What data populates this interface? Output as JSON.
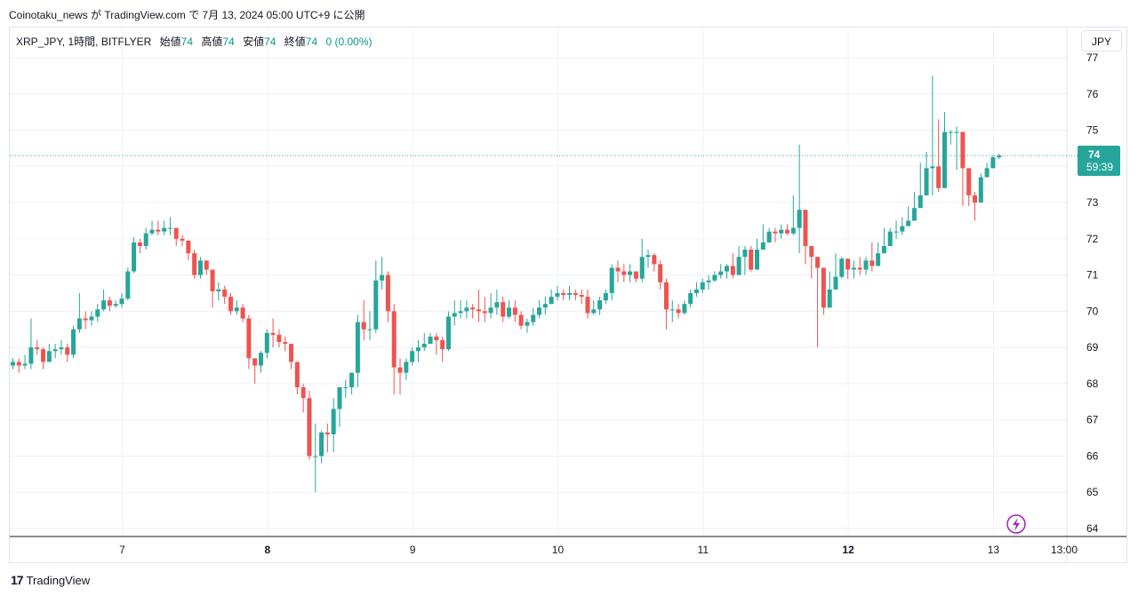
{
  "header": {
    "publish_line": "Coinotaku_news が TradingView.com で 7月 13, 2024 05:00 UTC+9 に公開"
  },
  "legend": {
    "symbol": "XRP_JPY, 1時間, BITFLYER",
    "open_label": "始値",
    "open_value": "74",
    "high_label": "高値",
    "high_value": "74",
    "low_label": "安値",
    "low_value": "74",
    "close_label": "終値",
    "close_value": "74",
    "change": "0 (0.00%)"
  },
  "currency_button": "JPY",
  "price_label": {
    "price": "74",
    "countdown": "59:39"
  },
  "footer": {
    "brand": "TradingView",
    "logo_glyph": "17"
  },
  "colors": {
    "up": "#26a69a",
    "down": "#ef5350",
    "grid": "#eef1f5",
    "last_line": "#26a69a",
    "flash": "#9c27b0"
  },
  "chart_data": {
    "type": "candlestick",
    "title": "",
    "xlabel": "",
    "ylabel": "",
    "ylim": [
      63.8,
      77.2
    ],
    "y_ticks": [
      64,
      65,
      66,
      67,
      68,
      69,
      70,
      71,
      72,
      73,
      74,
      75,
      76,
      77
    ],
    "x_ticks": [
      "7",
      "8",
      "9",
      "10",
      "11",
      "12",
      "13",
      "13:00"
    ],
    "grid": true,
    "last_price": 74.3,
    "closes": [
      68.6,
      68.5,
      68.55,
      69.0,
      68.95,
      68.6,
      68.9,
      68.95,
      69.0,
      68.8,
      69.5,
      69.8,
      69.75,
      69.85,
      70.05,
      70.3,
      70.15,
      70.2,
      70.35,
      71.1,
      71.9,
      71.8,
      72.15,
      72.25,
      72.2,
      72.3,
      72.3,
      72.0,
      71.95,
      71.6,
      71.0,
      71.4,
      71.15,
      70.55,
      70.6,
      70.4,
      70.0,
      70.1,
      69.8,
      68.7,
      68.5,
      68.85,
      69.4,
      69.35,
      69.15,
      69.1,
      68.6,
      67.9,
      67.6,
      66.0,
      66.0,
      66.65,
      66.6,
      67.3,
      67.9,
      67.9,
      68.3,
      69.7,
      69.5,
      69.5,
      70.85,
      71.0,
      70.0,
      68.45,
      68.3,
      68.6,
      68.9,
      69.0,
      69.1,
      69.3,
      69.2,
      68.95,
      69.85,
      69.95,
      70.0,
      70.1,
      70.05,
      70.0,
      69.95,
      70.1,
      70.25,
      69.85,
      70.1,
      69.9,
      69.6,
      69.7,
      69.9,
      70.1,
      70.2,
      70.4,
      70.5,
      70.45,
      70.5,
      70.45,
      70.4,
      69.95,
      70.05,
      70.3,
      70.5,
      71.2,
      71.1,
      71.0,
      71.1,
      70.9,
      71.5,
      71.55,
      71.3,
      70.8,
      70.05,
      70.05,
      69.95,
      70.2,
      70.5,
      70.6,
      70.8,
      70.85,
      71.0,
      71.1,
      71.25,
      71.0,
      71.5,
      71.7,
      71.15,
      71.7,
      71.9,
      72.2,
      72.15,
      72.25,
      72.15,
      72.3,
      72.8,
      71.8,
      71.5,
      71.2,
      70.1,
      70.6,
      70.95,
      71.45,
      71.15,
      71.2,
      71.15,
      71.4,
      71.25,
      71.6,
      71.8,
      72.2,
      72.2,
      72.35,
      72.5,
      72.85,
      73.2,
      73.95,
      74.0,
      73.4,
      74.95,
      74.95,
      74.95,
      73.95,
      73.2,
      73.0,
      73.7,
      73.95,
      74.25,
      74.3
    ],
    "opens_first": 68.5,
    "wicks": [
      [
        68.4,
        68.7
      ],
      [
        68.3,
        68.7
      ],
      [
        68.4,
        68.8
      ],
      [
        68.4,
        69.8
      ],
      [
        68.8,
        69.2
      ],
      [
        68.4,
        69.0
      ],
      [
        68.6,
        69.1
      ],
      [
        68.7,
        69.1
      ],
      [
        68.8,
        69.2
      ],
      [
        68.6,
        69.1
      ],
      [
        68.7,
        69.6
      ],
      [
        69.4,
        70.5
      ],
      [
        69.5,
        70.0
      ],
      [
        69.6,
        70.0
      ],
      [
        69.7,
        70.2
      ],
      [
        70.0,
        70.6
      ],
      [
        70.0,
        70.4
      ],
      [
        70.1,
        70.3
      ],
      [
        70.1,
        70.5
      ],
      [
        70.3,
        71.2
      ],
      [
        71.05,
        72.05
      ],
      [
        71.6,
        72.0
      ],
      [
        71.7,
        72.3
      ],
      [
        72.1,
        72.5
      ],
      [
        72.1,
        72.5
      ],
      [
        72.1,
        72.5
      ],
      [
        72.1,
        72.6
      ],
      [
        71.8,
        72.3
      ],
      [
        71.8,
        72.1
      ],
      [
        71.4,
        71.9
      ],
      [
        70.9,
        71.7
      ],
      [
        70.9,
        71.5
      ],
      [
        71.0,
        71.3
      ],
      [
        70.1,
        71.0
      ],
      [
        70.3,
        70.8
      ],
      [
        70.2,
        70.7
      ],
      [
        69.9,
        70.5
      ],
      [
        69.9,
        70.3
      ],
      [
        69.7,
        70.2
      ],
      [
        68.4,
        69.9
      ],
      [
        68.0,
        68.7
      ],
      [
        68.3,
        68.9
      ],
      [
        68.7,
        69.5
      ],
      [
        69.0,
        69.8
      ],
      [
        69.0,
        69.5
      ],
      [
        68.9,
        69.3
      ],
      [
        68.4,
        69.1
      ],
      [
        67.7,
        68.6
      ],
      [
        67.2,
        68.0
      ],
      [
        65.9,
        67.8
      ],
      [
        65.0,
        66.9
      ],
      [
        65.8,
        66.7
      ],
      [
        66.1,
        66.9
      ],
      [
        66.1,
        67.6
      ],
      [
        66.8,
        67.9
      ],
      [
        67.6,
        68.1
      ],
      [
        67.7,
        68.3
      ],
      [
        67.9,
        69.9
      ],
      [
        69.2,
        70.3
      ],
      [
        69.2,
        70.0
      ],
      [
        69.4,
        71.4
      ],
      [
        70.6,
        71.5
      ],
      [
        69.7,
        71.1
      ],
      [
        67.7,
        70.2
      ],
      [
        67.7,
        68.7
      ],
      [
        68.1,
        68.7
      ],
      [
        68.5,
        69.0
      ],
      [
        68.6,
        69.2
      ],
      [
        68.9,
        69.4
      ],
      [
        69.1,
        69.4
      ],
      [
        68.8,
        69.4
      ],
      [
        68.6,
        69.3
      ],
      [
        68.9,
        70.0
      ],
      [
        69.6,
        70.3
      ],
      [
        69.8,
        70.3
      ],
      [
        69.8,
        70.3
      ],
      [
        69.8,
        70.2
      ],
      [
        69.7,
        70.6
      ],
      [
        69.7,
        70.4
      ],
      [
        69.8,
        70.5
      ],
      [
        69.9,
        70.6
      ],
      [
        69.7,
        70.4
      ],
      [
        69.8,
        70.3
      ],
      [
        69.7,
        70.3
      ],
      [
        69.5,
        70.0
      ],
      [
        69.4,
        69.8
      ],
      [
        69.6,
        70.1
      ],
      [
        69.8,
        70.3
      ],
      [
        69.9,
        70.4
      ],
      [
        70.2,
        70.6
      ],
      [
        70.3,
        70.7
      ],
      [
        70.3,
        70.6
      ],
      [
        70.3,
        70.7
      ],
      [
        70.3,
        70.6
      ],
      [
        70.2,
        70.6
      ],
      [
        69.8,
        70.6
      ],
      [
        69.9,
        70.3
      ],
      [
        69.9,
        70.4
      ],
      [
        70.2,
        70.6
      ],
      [
        70.3,
        71.3
      ],
      [
        70.8,
        71.4
      ],
      [
        70.8,
        71.3
      ],
      [
        70.8,
        71.3
      ],
      [
        70.8,
        71.1
      ],
      [
        70.8,
        72.0
      ],
      [
        71.2,
        71.7
      ],
      [
        71.1,
        71.6
      ],
      [
        70.6,
        71.4
      ],
      [
        69.5,
        70.9
      ],
      [
        69.7,
        70.3
      ],
      [
        69.8,
        70.2
      ],
      [
        69.9,
        70.3
      ],
      [
        70.1,
        70.6
      ],
      [
        70.4,
        70.8
      ],
      [
        70.5,
        70.9
      ],
      [
        70.6,
        71.0
      ],
      [
        70.8,
        71.1
      ],
      [
        70.9,
        71.3
      ],
      [
        70.9,
        71.3
      ],
      [
        70.9,
        71.6
      ],
      [
        71.3,
        71.8
      ],
      [
        71.0,
        71.8
      ],
      [
        71.1,
        71.8
      ],
      [
        71.5,
        72.0
      ],
      [
        71.8,
        72.4
      ],
      [
        71.9,
        72.3
      ],
      [
        71.9,
        72.3
      ],
      [
        72.0,
        72.4
      ],
      [
        72.1,
        72.4
      ],
      [
        72.1,
        73.2
      ],
      [
        71.6,
        74.6
      ],
      [
        71.3,
        71.9
      ],
      [
        70.9,
        71.6
      ],
      [
        69.0,
        71.4
      ],
      [
        69.9,
        70.7
      ],
      [
        70.3,
        71.1
      ],
      [
        70.8,
        71.6
      ],
      [
        70.9,
        71.5
      ],
      [
        70.9,
        71.3
      ],
      [
        70.9,
        71.4
      ],
      [
        71.0,
        71.5
      ],
      [
        71.0,
        71.5
      ],
      [
        71.1,
        71.9
      ],
      [
        71.5,
        71.9
      ],
      [
        71.6,
        72.3
      ],
      [
        71.9,
        72.3
      ],
      [
        72.0,
        72.5
      ],
      [
        72.1,
        72.6
      ],
      [
        72.4,
        72.9
      ],
      [
        72.5,
        73.3
      ],
      [
        73.3,
        74.1
      ],
      [
        73.8,
        74.4
      ],
      [
        73.2,
        76.5
      ],
      [
        73.3,
        75.3
      ],
      [
        74.8,
        75.5
      ],
      [
        74.6,
        75.0
      ],
      [
        73.9,
        75.1
      ],
      [
        72.9,
        74.6
      ],
      [
        72.9,
        73.6
      ],
      [
        72.5,
        73.3
      ],
      [
        73.3,
        73.8
      ],
      [
        73.8,
        74.1
      ],
      [
        74.0,
        74.3
      ],
      [
        74.2,
        74.35
      ]
    ]
  }
}
